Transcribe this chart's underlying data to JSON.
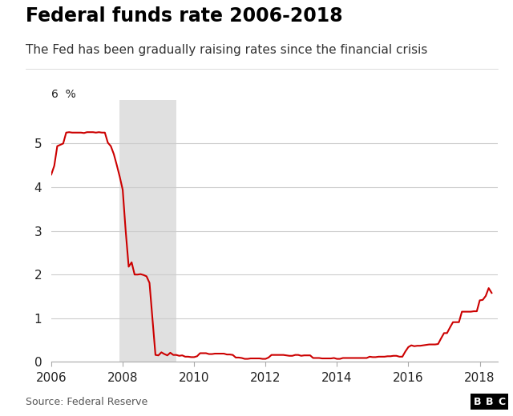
{
  "title": "Federal funds rate 2006-2018",
  "subtitle": "The Fed has been gradually raising rates since the financial crisis",
  "source": "Source: Federal Reserve",
  "bbc_label": "BBC",
  "line_color": "#cc0000",
  "line_width": 1.5,
  "recession_color": "#e0e0e0",
  "recession_start": 2007.917,
  "recession_end": 2009.5,
  "background_color": "#ffffff",
  "ylim": [
    0,
    6
  ],
  "xlim": [
    2006.0,
    2018.5
  ],
  "yticks": [
    0,
    1,
    2,
    3,
    4,
    5
  ],
  "xticks": [
    2006,
    2008,
    2010,
    2012,
    2014,
    2016,
    2018
  ],
  "data": [
    [
      2006.0,
      4.29
    ],
    [
      2006.083,
      4.49
    ],
    [
      2006.167,
      4.94
    ],
    [
      2006.25,
      4.97
    ],
    [
      2006.333,
      5.0
    ],
    [
      2006.417,
      5.25
    ],
    [
      2006.5,
      5.26
    ],
    [
      2006.583,
      5.25
    ],
    [
      2006.667,
      5.25
    ],
    [
      2006.75,
      5.25
    ],
    [
      2006.833,
      5.25
    ],
    [
      2006.917,
      5.24
    ],
    [
      2007.0,
      5.26
    ],
    [
      2007.083,
      5.26
    ],
    [
      2007.167,
      5.26
    ],
    [
      2007.25,
      5.25
    ],
    [
      2007.333,
      5.26
    ],
    [
      2007.417,
      5.25
    ],
    [
      2007.5,
      5.25
    ],
    [
      2007.583,
      5.02
    ],
    [
      2007.667,
      4.94
    ],
    [
      2007.75,
      4.76
    ],
    [
      2007.833,
      4.51
    ],
    [
      2007.917,
      4.24
    ],
    [
      2008.0,
      3.94
    ],
    [
      2008.083,
      3.0
    ],
    [
      2008.167,
      2.18
    ],
    [
      2008.25,
      2.28
    ],
    [
      2008.333,
      2.0
    ],
    [
      2008.417,
      2.0
    ],
    [
      2008.5,
      2.01
    ],
    [
      2008.583,
      1.99
    ],
    [
      2008.667,
      1.96
    ],
    [
      2008.75,
      1.81
    ],
    [
      2008.833,
      1.0
    ],
    [
      2008.917,
      0.16
    ],
    [
      2009.0,
      0.15
    ],
    [
      2009.083,
      0.22
    ],
    [
      2009.167,
      0.18
    ],
    [
      2009.25,
      0.15
    ],
    [
      2009.333,
      0.21
    ],
    [
      2009.417,
      0.16
    ],
    [
      2009.5,
      0.16
    ],
    [
      2009.583,
      0.14
    ],
    [
      2009.667,
      0.15
    ],
    [
      2009.75,
      0.12
    ],
    [
      2009.833,
      0.12
    ],
    [
      2009.917,
      0.11
    ],
    [
      2010.0,
      0.11
    ],
    [
      2010.083,
      0.13
    ],
    [
      2010.167,
      0.2
    ],
    [
      2010.25,
      0.2
    ],
    [
      2010.333,
      0.2
    ],
    [
      2010.417,
      0.18
    ],
    [
      2010.5,
      0.18
    ],
    [
      2010.583,
      0.19
    ],
    [
      2010.667,
      0.19
    ],
    [
      2010.75,
      0.19
    ],
    [
      2010.833,
      0.19
    ],
    [
      2010.917,
      0.17
    ],
    [
      2011.0,
      0.17
    ],
    [
      2011.083,
      0.16
    ],
    [
      2011.167,
      0.1
    ],
    [
      2011.25,
      0.1
    ],
    [
      2011.333,
      0.09
    ],
    [
      2011.417,
      0.07
    ],
    [
      2011.5,
      0.07
    ],
    [
      2011.583,
      0.08
    ],
    [
      2011.667,
      0.08
    ],
    [
      2011.75,
      0.08
    ],
    [
      2011.833,
      0.08
    ],
    [
      2011.917,
      0.07
    ],
    [
      2012.0,
      0.07
    ],
    [
      2012.083,
      0.1
    ],
    [
      2012.167,
      0.16
    ],
    [
      2012.25,
      0.16
    ],
    [
      2012.333,
      0.16
    ],
    [
      2012.417,
      0.16
    ],
    [
      2012.5,
      0.16
    ],
    [
      2012.583,
      0.15
    ],
    [
      2012.667,
      0.14
    ],
    [
      2012.75,
      0.14
    ],
    [
      2012.833,
      0.16
    ],
    [
      2012.917,
      0.16
    ],
    [
      2013.0,
      0.14
    ],
    [
      2013.083,
      0.15
    ],
    [
      2013.167,
      0.15
    ],
    [
      2013.25,
      0.15
    ],
    [
      2013.333,
      0.09
    ],
    [
      2013.417,
      0.09
    ],
    [
      2013.5,
      0.09
    ],
    [
      2013.583,
      0.08
    ],
    [
      2013.667,
      0.08
    ],
    [
      2013.75,
      0.08
    ],
    [
      2013.833,
      0.08
    ],
    [
      2013.917,
      0.09
    ],
    [
      2014.0,
      0.07
    ],
    [
      2014.083,
      0.07
    ],
    [
      2014.167,
      0.09
    ],
    [
      2014.25,
      0.09
    ],
    [
      2014.333,
      0.09
    ],
    [
      2014.417,
      0.09
    ],
    [
      2014.5,
      0.09
    ],
    [
      2014.583,
      0.09
    ],
    [
      2014.667,
      0.09
    ],
    [
      2014.75,
      0.09
    ],
    [
      2014.833,
      0.09
    ],
    [
      2014.917,
      0.12
    ],
    [
      2015.0,
      0.11
    ],
    [
      2015.083,
      0.11
    ],
    [
      2015.167,
      0.12
    ],
    [
      2015.25,
      0.12
    ],
    [
      2015.333,
      0.12
    ],
    [
      2015.417,
      0.13
    ],
    [
      2015.5,
      0.13
    ],
    [
      2015.583,
      0.14
    ],
    [
      2015.667,
      0.14
    ],
    [
      2015.75,
      0.12
    ],
    [
      2015.833,
      0.12
    ],
    [
      2015.917,
      0.24
    ],
    [
      2016.0,
      0.34
    ],
    [
      2016.083,
      0.38
    ],
    [
      2016.167,
      0.36
    ],
    [
      2016.25,
      0.37
    ],
    [
      2016.333,
      0.37
    ],
    [
      2016.417,
      0.38
    ],
    [
      2016.5,
      0.39
    ],
    [
      2016.583,
      0.4
    ],
    [
      2016.667,
      0.4
    ],
    [
      2016.75,
      0.4
    ],
    [
      2016.833,
      0.41
    ],
    [
      2016.917,
      0.54
    ],
    [
      2017.0,
      0.66
    ],
    [
      2017.083,
      0.66
    ],
    [
      2017.167,
      0.79
    ],
    [
      2017.25,
      0.91
    ],
    [
      2017.333,
      0.91
    ],
    [
      2017.417,
      0.91
    ],
    [
      2017.5,
      1.15
    ],
    [
      2017.583,
      1.15
    ],
    [
      2017.667,
      1.15
    ],
    [
      2017.75,
      1.15
    ],
    [
      2017.833,
      1.16
    ],
    [
      2017.917,
      1.16
    ],
    [
      2018.0,
      1.41
    ],
    [
      2018.083,
      1.42
    ],
    [
      2018.167,
      1.51
    ],
    [
      2018.25,
      1.69
    ],
    [
      2018.333,
      1.58
    ]
  ]
}
